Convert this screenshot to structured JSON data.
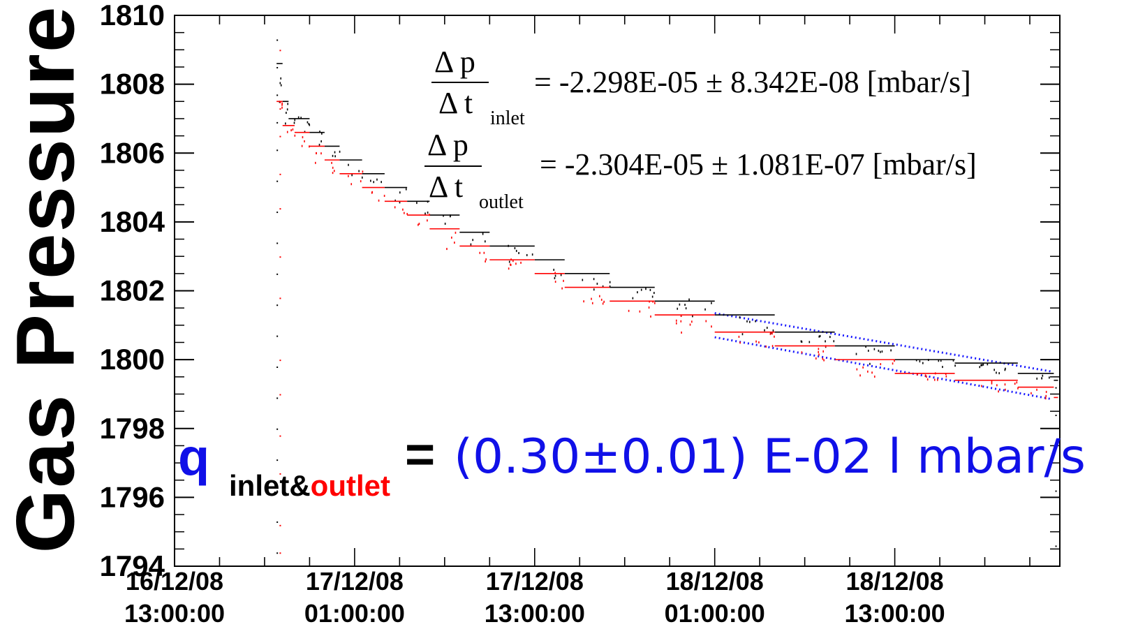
{
  "chart_data": {
    "type": "scatter",
    "ylabel": "Gas Pressure",
    "xlabel": "",
    "ylim": [
      1794,
      1810
    ],
    "yticks": [
      "1794",
      "1796",
      "1798",
      "1800",
      "1802",
      "1804",
      "1806",
      "1808",
      "1810"
    ],
    "xlim_hours_from_first_tick": [
      0,
      59
    ],
    "xticks": [
      {
        "date": "16/12/08",
        "time": "13:00:00",
        "hours": 0
      },
      {
        "date": "17/12/08",
        "time": "01:00:00",
        "hours": 12
      },
      {
        "date": "17/12/08",
        "time": "13:00:00",
        "hours": 24
      },
      {
        "date": "18/12/08",
        "time": "01:00:00",
        "hours": 36
      },
      {
        "date": "18/12/08",
        "time": "13:00:00",
        "hours": 48
      }
    ],
    "series": [
      {
        "name": "inlet",
        "color": "#000000",
        "points": [
          [
            6.8,
            1808.6
          ],
          [
            7.2,
            1807.5
          ],
          [
            7.6,
            1807.0
          ],
          [
            8.4,
            1807.0
          ],
          [
            9.0,
            1806.6
          ],
          [
            10.0,
            1806.2
          ],
          [
            11.0,
            1805.8
          ],
          [
            12.5,
            1805.4
          ],
          [
            14.0,
            1805.0
          ],
          [
            15.5,
            1804.6
          ],
          [
            17.0,
            1804.2
          ],
          [
            19.0,
            1803.7
          ],
          [
            21.0,
            1803.3
          ],
          [
            24.0,
            1802.9
          ],
          [
            26.0,
            1802.5
          ],
          [
            29.0,
            1802.1
          ],
          [
            32.0,
            1801.7
          ],
          [
            36.0,
            1801.3
          ],
          [
            40.0,
            1800.8
          ],
          [
            44.0,
            1800.4
          ],
          [
            48.0,
            1800.0
          ],
          [
            52.0,
            1799.9
          ],
          [
            56.2,
            1799.6
          ],
          [
            58.6,
            1799.4
          ]
        ]
      },
      {
        "name": "outlet",
        "color": "#ff0000",
        "points": [
          [
            6.8,
            1807.5
          ],
          [
            7.2,
            1806.8
          ],
          [
            8.0,
            1806.6
          ],
          [
            9.0,
            1806.2
          ],
          [
            10.0,
            1805.8
          ],
          [
            11.0,
            1805.4
          ],
          [
            12.5,
            1805.0
          ],
          [
            14.0,
            1804.6
          ],
          [
            15.5,
            1804.2
          ],
          [
            17.0,
            1803.8
          ],
          [
            19.0,
            1803.3
          ],
          [
            21.0,
            1802.9
          ],
          [
            24.0,
            1802.5
          ],
          [
            26.0,
            1802.1
          ],
          [
            29.0,
            1801.7
          ],
          [
            32.0,
            1801.3
          ],
          [
            36.0,
            1800.8
          ],
          [
            40.0,
            1800.4
          ],
          [
            44.0,
            1800.0
          ],
          [
            48.0,
            1799.6
          ],
          [
            52.0,
            1799.4
          ],
          [
            56.2,
            1799.2
          ],
          [
            58.6,
            1798.9
          ]
        ]
      },
      {
        "name": "inlet fit",
        "color": "#1a1aff",
        "style": "dotted",
        "points": [
          [
            36.0,
            1801.35
          ],
          [
            58.5,
            1799.65
          ]
        ]
      },
      {
        "name": "outlet fit",
        "color": "#1a1aff",
        "style": "dotted",
        "points": [
          [
            36.0,
            1800.65
          ],
          [
            58.5,
            1798.85
          ]
        ]
      }
    ],
    "vertical_scatter": [
      {
        "color": "#000000",
        "hours": 6.8,
        "y_values": [
          1809.3,
          1808.5,
          1807.7,
          1806.9,
          1806.1,
          1805.2,
          1804.3,
          1803.4,
          1802.5,
          1801.6,
          1800.7,
          1799.8,
          1798.9,
          1798.0,
          1797.1,
          1796.2,
          1795.3,
          1794.4
        ]
      },
      {
        "color": "#ff0000",
        "hours": 7.0,
        "y_values": [
          1809.0,
          1807.3,
          1806.5,
          1805.4,
          1804.4,
          1803.0,
          1801.8,
          1800.0,
          1799.0,
          1797.8,
          1796.7,
          1795.2,
          1794.4
        ]
      },
      {
        "color": "#000000",
        "hours": 58.7,
        "y_values": [
          1799.2,
          1798.4,
          1796.2,
          1794.6
        ]
      }
    ],
    "annotations": {
      "inlet_rate": {
        "numerator": "Δ p",
        "denominator": "Δ t",
        "subscript": "inlet",
        "value": "= -2.298E-05 ± 8.342E-08 [mbar/s]"
      },
      "outlet_rate": {
        "numerator": "Δ p",
        "denominator": "Δ t",
        "subscript": "outlet",
        "value": "= -2.304E-05 ± 1.081E-07 [mbar/s]"
      },
      "leak_rate": {
        "symbol": "q",
        "subscript_part1": "inlet&",
        "subscript_part2": "outlet",
        "equals": "=",
        "value": "(0.30±0.01) E-02 l mbar/s"
      }
    },
    "grid": false,
    "legend": "none"
  },
  "colors": {
    "inlet": "#000000",
    "outlet": "#ff0000",
    "fit": "#1a1aff",
    "q_text": "#1010e8"
  }
}
